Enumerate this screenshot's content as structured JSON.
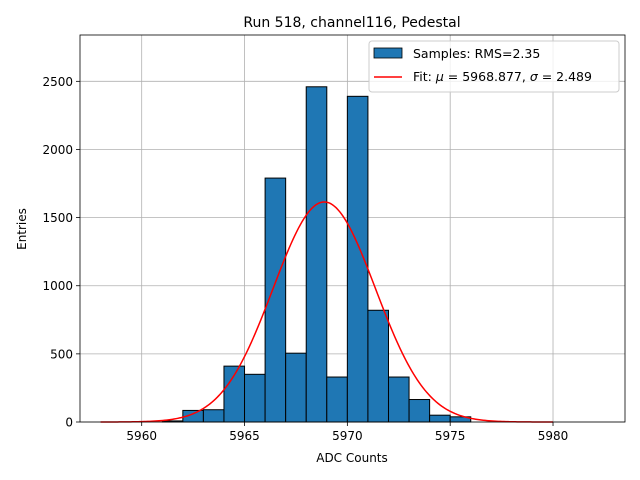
{
  "chart_data": {
    "type": "bar",
    "title": "Run 518, channel116, Pedestal",
    "xlabel": "ADC Counts",
    "ylabel": "Entries",
    "xlim": [
      5957,
      5983.5
    ],
    "ylim": [
      0,
      2840
    ],
    "grid": true,
    "legend_position": "top-right",
    "xticks": [
      "5960",
      "5965",
      "5970",
      "5975",
      "5980"
    ],
    "xtick_values": [
      5960,
      5965,
      5970,
      5975,
      5980
    ],
    "yticks": [
      "0",
      "500",
      "1000",
      "1500",
      "2000",
      "2500"
    ],
    "ytick_values": [
      0,
      500,
      1000,
      1500,
      2000,
      2500
    ],
    "bin_width": 1,
    "bin_starts": [
      5961,
      5962,
      5963,
      5964,
      5965,
      5966,
      5967,
      5968,
      5969,
      5970,
      5971,
      5972,
      5973,
      5974,
      5975
    ],
    "values": [
      8,
      85,
      90,
      410,
      350,
      1790,
      505,
      2460,
      330,
      2390,
      820,
      330,
      165,
      50,
      38
    ],
    "series": [
      {
        "name": "Samples: RMS=2.35",
        "kind": "histogram",
        "color": "#1f77b4"
      },
      {
        "name": "Fit: μ = 5968.877, σ = 2.489",
        "kind": "gaussian",
        "mu": 5968.877,
        "sigma": 2.489,
        "amplitude": 1615,
        "x_range": [
          5958,
          5980
        ],
        "color": "#ff0000"
      }
    ],
    "legend": [
      {
        "label_plain": "Samples: RMS=2.35"
      },
      {
        "label_prefix": "Fit: ",
        "mu_symbol": "μ",
        "mu_text": " = 5968.877, ",
        "sigma_symbol": "σ",
        "sigma_text": " = 2.489"
      }
    ]
  }
}
